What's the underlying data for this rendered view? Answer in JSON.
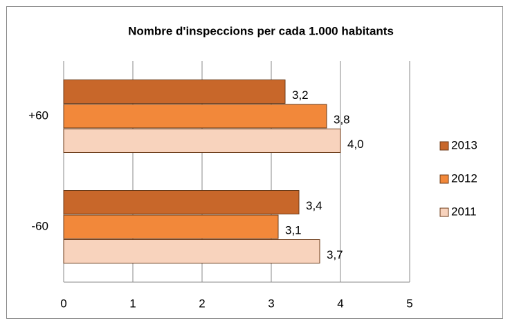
{
  "chart_data": {
    "type": "bar",
    "orientation": "horizontal",
    "title": "Nombre d'inspeccions per cada 1.000 habitants",
    "categories": [
      "+60",
      "-60"
    ],
    "series": [
      {
        "name": "2013",
        "color": "#c8672a",
        "values": [
          3.2,
          3.4
        ],
        "value_labels": [
          "3,2",
          "3,4"
        ]
      },
      {
        "name": "2012",
        "color": "#f2883a",
        "values": [
          3.8,
          3.1
        ],
        "value_labels": [
          "3,8",
          "3,1"
        ]
      },
      {
        "name": "2011",
        "color": "#f8d3bd",
        "values": [
          4.0,
          3.7
        ],
        "value_labels": [
          "4,0",
          "3,7"
        ]
      }
    ],
    "xlim": [
      0,
      5
    ],
    "xticks": [
      0,
      1,
      2,
      3,
      4,
      5
    ],
    "grid": true,
    "legend": "right"
  }
}
